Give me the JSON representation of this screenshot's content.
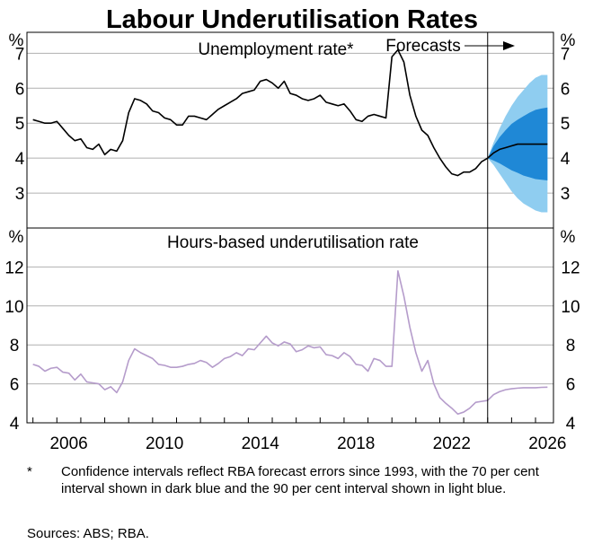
{
  "title": "Labour Underutilisation Rates",
  "colors": {
    "unemployment": "#000000",
    "hours": "#b59ccb",
    "ci70": "#1f88d6",
    "ci90": "#8fcdf0"
  },
  "forecasts_label": "Forecasts",
  "footnote": {
    "marker": "*",
    "text": "Confidence intervals reflect RBA forecast errors since 1993, with the 70 per cent interval shown in dark blue and the 90 per cent interval shown in light blue."
  },
  "sources": "Sources: ABS; RBA.",
  "chart_data": [
    {
      "type": "line",
      "title": "Unemployment rate*",
      "unit_label": "%",
      "ylim": [
        2,
        7.6
      ],
      "yticks": [
        3,
        4,
        5,
        6,
        7
      ],
      "grid": true,
      "forecast_start": 2024.0,
      "series": [
        {
          "x": [
            2005.0,
            2005.25,
            2005.5,
            2005.75,
            2006.0,
            2006.25,
            2006.5,
            2006.75,
            2007.0,
            2007.25,
            2007.5,
            2007.75,
            2008.0,
            2008.25,
            2008.5,
            2008.75,
            2009.0,
            2009.25,
            2009.5,
            2009.75,
            2010.0,
            2010.25,
            2010.5,
            2010.75,
            2011.0,
            2011.25,
            2011.5,
            2011.75,
            2012.0,
            2012.25,
            2012.5,
            2012.75,
            2013.0,
            2013.25,
            2013.5,
            2013.75,
            2014.0,
            2014.25,
            2014.5,
            2014.75,
            2015.0,
            2015.25,
            2015.5,
            2015.75,
            2016.0,
            2016.25,
            2016.5,
            2016.75,
            2017.0,
            2017.25,
            2017.5,
            2017.75,
            2018.0,
            2018.25,
            2018.5,
            2018.75,
            2019.0,
            2019.25,
            2019.5,
            2019.75,
            2020.0,
            2020.25,
            2020.5,
            2020.75,
            2021.0,
            2021.25,
            2021.5,
            2021.75,
            2022.0,
            2022.25,
            2022.5,
            2022.75,
            2023.0,
            2023.25,
            2023.5,
            2023.75,
            2024.0
          ],
          "values": [
            5.1,
            5.05,
            5.0,
            5.0,
            5.05,
            4.85,
            4.65,
            4.5,
            4.55,
            4.3,
            4.25,
            4.4,
            4.1,
            4.25,
            4.2,
            4.5,
            5.3,
            5.7,
            5.65,
            5.55,
            5.35,
            5.3,
            5.15,
            5.1,
            4.95,
            4.95,
            5.2,
            5.2,
            5.15,
            5.1,
            5.25,
            5.4,
            5.5,
            5.6,
            5.7,
            5.85,
            5.9,
            5.95,
            6.2,
            6.25,
            6.15,
            6.0,
            6.2,
            5.85,
            5.8,
            5.7,
            5.65,
            5.7,
            5.8,
            5.6,
            5.55,
            5.5,
            5.55,
            5.35,
            5.1,
            5.05,
            5.2,
            5.25,
            5.2,
            5.15,
            6.9,
            7.1,
            6.75,
            5.8,
            5.2,
            4.8,
            4.65,
            4.3,
            4.0,
            3.75,
            3.55,
            3.5,
            3.6,
            3.6,
            3.7,
            3.9,
            4.0
          ]
        },
        {
          "name": "Forecast",
          "x": [
            2024.0,
            2024.25,
            2024.5,
            2024.75,
            2025.0,
            2025.25,
            2025.5,
            2025.75,
            2026.0,
            2026.25,
            2026.5
          ],
          "values": [
            4.0,
            4.15,
            4.25,
            4.3,
            4.35,
            4.4,
            4.4,
            4.4,
            4.4,
            4.4,
            4.4
          ]
        }
      ],
      "bands": [
        {
          "name": "90 per cent interval",
          "x": [
            2024.0,
            2024.25,
            2024.5,
            2024.75,
            2025.0,
            2025.25,
            2025.5,
            2025.75,
            2026.0,
            2026.25,
            2026.5
          ],
          "low": [
            4.0,
            3.8,
            3.55,
            3.3,
            3.05,
            2.85,
            2.7,
            2.6,
            2.5,
            2.45,
            2.45
          ],
          "high": [
            4.0,
            4.45,
            4.85,
            5.2,
            5.5,
            5.75,
            5.95,
            6.15,
            6.3,
            6.38,
            6.38
          ]
        },
        {
          "name": "70 per cent interval",
          "x": [
            2024.0,
            2024.25,
            2024.5,
            2024.75,
            2025.0,
            2025.25,
            2025.5,
            2025.75,
            2026.0,
            2026.25,
            2026.5
          ],
          "low": [
            4.0,
            3.93,
            3.85,
            3.75,
            3.65,
            3.58,
            3.5,
            3.45,
            3.4,
            3.38,
            3.36
          ],
          "high": [
            4.0,
            4.35,
            4.6,
            4.8,
            4.98,
            5.1,
            5.2,
            5.3,
            5.38,
            5.42,
            5.45
          ]
        }
      ]
    },
    {
      "type": "line",
      "title": "Hours-based underutilisation rate",
      "unit_label": "%",
      "ylim": [
        4,
        14
      ],
      "yticks": [
        4,
        6,
        8,
        10,
        12
      ],
      "grid": true,
      "xticks": [
        2006,
        2010,
        2014,
        2018,
        2022,
        2026
      ],
      "xlim": [
        2004.75,
        2026.75
      ],
      "series": [
        {
          "x": [
            2005.0,
            2005.25,
            2005.5,
            2005.75,
            2006.0,
            2006.25,
            2006.5,
            2006.75,
            2007.0,
            2007.25,
            2007.5,
            2007.75,
            2008.0,
            2008.25,
            2008.5,
            2008.75,
            2009.0,
            2009.25,
            2009.5,
            2009.75,
            2010.0,
            2010.25,
            2010.5,
            2010.75,
            2011.0,
            2011.25,
            2011.5,
            2011.75,
            2012.0,
            2012.25,
            2012.5,
            2012.75,
            2013.0,
            2013.25,
            2013.5,
            2013.75,
            2014.0,
            2014.25,
            2014.5,
            2014.75,
            2015.0,
            2015.25,
            2015.5,
            2015.75,
            2016.0,
            2016.25,
            2016.5,
            2016.75,
            2017.0,
            2017.25,
            2017.5,
            2017.75,
            2018.0,
            2018.25,
            2018.5,
            2018.75,
            2019.0,
            2019.25,
            2019.5,
            2019.75,
            2020.0,
            2020.25,
            2020.5,
            2020.75,
            2021.0,
            2021.25,
            2021.5,
            2021.75,
            2022.0,
            2022.25,
            2022.5,
            2022.75,
            2023.0,
            2023.25,
            2023.5,
            2023.75,
            2024.0,
            2024.25,
            2024.5,
            2024.75,
            2025.0,
            2025.25,
            2025.5,
            2025.75,
            2026.0,
            2026.25,
            2026.5
          ],
          "values": [
            7.0,
            6.9,
            6.65,
            6.8,
            6.85,
            6.6,
            6.55,
            6.2,
            6.5,
            6.1,
            6.05,
            6.0,
            5.7,
            5.85,
            5.55,
            6.1,
            7.2,
            7.8,
            7.6,
            7.45,
            7.3,
            7.0,
            6.95,
            6.85,
            6.85,
            6.9,
            7.0,
            7.05,
            7.2,
            7.1,
            6.85,
            7.05,
            7.3,
            7.4,
            7.6,
            7.45,
            7.8,
            7.75,
            8.1,
            8.45,
            8.1,
            7.95,
            8.15,
            8.05,
            7.65,
            7.75,
            7.95,
            7.85,
            7.9,
            7.5,
            7.45,
            7.3,
            7.6,
            7.4,
            7.0,
            6.95,
            6.65,
            7.3,
            7.2,
            6.9,
            6.9,
            11.8,
            10.5,
            8.9,
            7.6,
            6.65,
            7.2,
            6.0,
            5.3,
            5.0,
            4.75,
            4.45,
            4.55,
            4.75,
            5.05,
            5.1,
            5.15,
            5.45,
            5.6,
            5.7,
            5.75,
            5.78,
            5.8,
            5.8,
            5.8,
            5.82,
            5.83
          ]
        }
      ]
    }
  ]
}
